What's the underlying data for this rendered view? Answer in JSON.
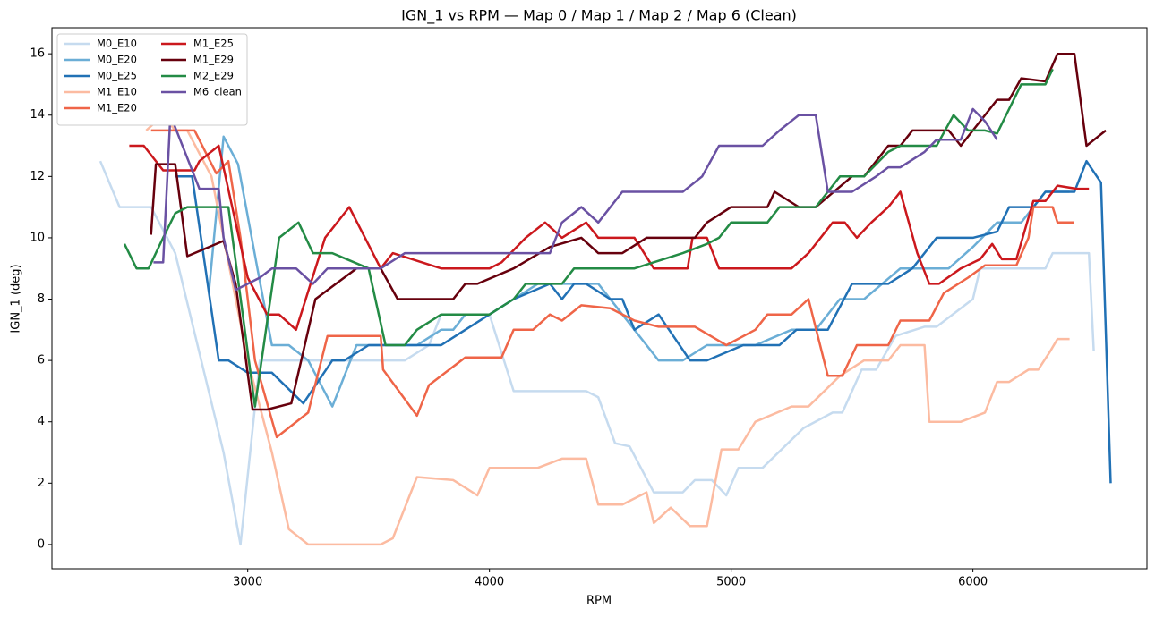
{
  "chart_data": {
    "type": "line",
    "title": "IGN_1 vs RPM — Map 0 / Map 1 / Map 2 / Map 6 (Clean)",
    "x_label": "RPM",
    "y_label": "IGN_1 (deg)",
    "xlim": [
      2190,
      6720
    ],
    "ylim": [
      -0.79,
      16.85
    ],
    "xticks": [
      3000,
      4000,
      5000,
      6000
    ],
    "yticks": [
      0,
      2,
      4,
      6,
      8,
      10,
      12,
      14,
      16
    ],
    "legend": "upper left",
    "series": [
      {
        "name": "M0_E10",
        "color": "#c6dbef",
        "x": [
          2390,
          2470,
          2600,
          2700,
          2900,
          2970,
          3050,
          3500,
          3650,
          3750,
          3800,
          4000,
          4100,
          4400,
          4450,
          4520,
          4580,
          4680,
          4800,
          4850,
          4920,
          4980,
          5030,
          5130,
          5300,
          5420,
          5460,
          5540,
          5600,
          5680,
          5800,
          5850,
          6000,
          6030,
          6300,
          6330,
          6480,
          6500
        ],
        "values": [
          12.5,
          11,
          11,
          9.5,
          3,
          0,
          6,
          6,
          6,
          6.5,
          7.5,
          7.5,
          5,
          5,
          4.8,
          3.3,
          3.2,
          1.7,
          1.7,
          2.1,
          2.1,
          1.6,
          2.5,
          2.5,
          3.8,
          4.3,
          4.3,
          5.7,
          5.7,
          6.8,
          7.1,
          7.1,
          8,
          9,
          9,
          9.5,
          9.5,
          6.3
        ]
      },
      {
        "name": "M0_E20",
        "color": "#6baed6",
        "x": [
          2840,
          2900,
          2960,
          3040,
          3100,
          3170,
          3250,
          3350,
          3450,
          3700,
          3800,
          3850,
          3900,
          4000,
          4100,
          4200,
          4450,
          4550,
          4700,
          4800,
          4900,
          5100,
          5250,
          5350,
          5450,
          5550,
          5700,
          5900,
          6000,
          6100,
          6200,
          6300,
          6400
        ],
        "values": [
          8.3,
          13.3,
          12.4,
          9,
          6.5,
          6.5,
          6,
          4.5,
          6.5,
          6.5,
          7,
          7,
          7.5,
          7.5,
          8,
          8.5,
          8.5,
          7.5,
          6,
          6,
          6.5,
          6.5,
          7,
          7,
          8,
          8,
          9,
          9,
          9.7,
          10.5,
          10.5,
          11.5,
          11.5
        ]
      },
      {
        "name": "M0_E25",
        "color": "#2171b5",
        "x": [
          2700,
          2770,
          2880,
          2920,
          3000,
          3100,
          3230,
          3350,
          3400,
          3500,
          3800,
          4000,
          4100,
          4250,
          4300,
          4350,
          4400,
          4500,
          4550,
          4600,
          4700,
          4830,
          4900,
          5050,
          5200,
          5270,
          5400,
          5500,
          5650,
          5750,
          5850,
          6000,
          6100,
          6150,
          6250,
          6300,
          6420,
          6470,
          6530,
          6570
        ],
        "values": [
          12,
          12,
          6,
          6,
          5.6,
          5.6,
          4.6,
          6,
          6,
          6.5,
          6.5,
          7.5,
          8,
          8.5,
          8,
          8.5,
          8.5,
          8,
          8,
          7,
          7.5,
          6,
          6,
          6.5,
          6.5,
          7,
          7,
          8.5,
          8.5,
          9,
          10,
          10,
          10.2,
          11,
          11,
          11.5,
          11.5,
          12.5,
          11.8,
          2
        ]
      },
      {
        "name": "M1_E10",
        "color": "#fcbba1",
        "x": [
          2580,
          2650,
          2700,
          2750,
          2850,
          3000,
          3100,
          3170,
          3250,
          3550,
          3600,
          3700,
          3850,
          3950,
          4000,
          4200,
          4300,
          4400,
          4450,
          4550,
          4650,
          4680,
          4750,
          4830,
          4900,
          4960,
          5030,
          5100,
          5250,
          5320,
          5450,
          5550,
          5650,
          5700,
          5800,
          5820,
          5950,
          6050,
          6100,
          6150,
          6230,
          6270,
          6320,
          6350,
          6400
        ],
        "values": [
          13.5,
          14,
          13.5,
          13.5,
          12,
          6,
          3,
          0.5,
          0,
          0,
          0.2,
          2.2,
          2.1,
          1.6,
          2.5,
          2.5,
          2.8,
          2.8,
          1.3,
          1.3,
          1.7,
          0.7,
          1.2,
          0.6,
          0.6,
          3.1,
          3.1,
          4,
          4.5,
          4.5,
          5.5,
          6,
          6,
          6.5,
          6.5,
          4,
          4,
          4.3,
          5.3,
          5.3,
          5.7,
          5.7,
          6.3,
          6.7,
          6.7
        ]
      },
      {
        "name": "M1_E20",
        "color": "#ef6548",
        "x": [
          2600,
          2780,
          2870,
          2920,
          2970,
          3030,
          3120,
          3250,
          3330,
          3550,
          3560,
          3700,
          3750,
          3900,
          4050,
          4100,
          4180,
          4250,
          4300,
          4380,
          4500,
          4600,
          4700,
          4850,
          4980,
          5100,
          5150,
          5250,
          5320,
          5400,
          5460,
          5520,
          5650,
          5700,
          5820,
          5880,
          5980,
          6050,
          6180,
          6230,
          6250,
          6330,
          6350,
          6420
        ],
        "values": [
          13.5,
          13.5,
          12.1,
          12.5,
          10,
          6,
          3.5,
          4.3,
          6.8,
          6.8,
          5.7,
          4.2,
          5.2,
          6.1,
          6.1,
          7,
          7,
          7.5,
          7.3,
          7.8,
          7.7,
          7.3,
          7.1,
          7.1,
          6.5,
          7,
          7.5,
          7.5,
          8,
          5.5,
          5.5,
          6.5,
          6.5,
          7.3,
          7.3,
          8.2,
          8.7,
          9.1,
          9.1,
          10,
          11,
          11,
          10.5,
          10.5
        ]
      },
      {
        "name": "M1_E25",
        "color": "#cb181d",
        "x": [
          2510,
          2570,
          2650,
          2780,
          2800,
          2880,
          3000,
          3080,
          3130,
          3200,
          3320,
          3420,
          3550,
          3600,
          3800,
          4000,
          4050,
          4150,
          4230,
          4300,
          4400,
          4450,
          4600,
          4680,
          4820,
          4840,
          4900,
          4950,
          5250,
          5320,
          5420,
          5470,
          5520,
          5580,
          5650,
          5700,
          5770,
          5820,
          5860,
          5950,
          6030,
          6080,
          6120,
          6180,
          6250,
          6300,
          6350,
          6430,
          6480
        ],
        "values": [
          13,
          13,
          12.2,
          12.2,
          12.5,
          13,
          8.7,
          7.5,
          7.5,
          7,
          10,
          11,
          9,
          9.5,
          9,
          9,
          9.2,
          10,
          10.5,
          10,
          10.5,
          10,
          10,
          9,
          9,
          10,
          10,
          9,
          9,
          9.5,
          10.5,
          10.5,
          10,
          10.5,
          11,
          11.5,
          9.5,
          8.5,
          8.5,
          9,
          9.3,
          9.8,
          9.3,
          9.3,
          11.2,
          11.2,
          11.7,
          11.6,
          11.6
        ]
      },
      {
        "name": "M1_E29",
        "color": "#67000d",
        "x": [
          2600,
          2620,
          2700,
          2750,
          2900,
          2950,
          3020,
          3080,
          3180,
          3280,
          3450,
          3550,
          3620,
          3850,
          3900,
          3950,
          4100,
          4250,
          4380,
          4450,
          4550,
          4650,
          4850,
          4900,
          5000,
          5150,
          5180,
          5280,
          5350,
          5500,
          5550,
          5650,
          5700,
          5750,
          5900,
          5950,
          6000,
          6100,
          6150,
          6200,
          6300,
          6350,
          6420,
          6470,
          6550
        ],
        "values": [
          10.1,
          12.4,
          12.4,
          9.4,
          9.9,
          8.5,
          4.4,
          4.4,
          4.6,
          8,
          9,
          9,
          8,
          8,
          8.5,
          8.5,
          9,
          9.7,
          10,
          9.5,
          9.5,
          10,
          10,
          10.5,
          11,
          11,
          11.5,
          11,
          11,
          12,
          12,
          13,
          13,
          13.5,
          13.5,
          13,
          13.5,
          14.5,
          14.5,
          15.2,
          15.1,
          16,
          16,
          13,
          13.5
        ]
      },
      {
        "name": "M2_E29",
        "color": "#238b45",
        "x": [
          2490,
          2540,
          2590,
          2650,
          2700,
          2750,
          2920,
          3030,
          3130,
          3210,
          3270,
          3350,
          3500,
          3570,
          3650,
          3700,
          3800,
          4000,
          4100,
          4150,
          4300,
          4350,
          4600,
          4800,
          4900,
          4950,
          5000,
          5150,
          5200,
          5350,
          5400,
          5450,
          5550,
          5650,
          5700,
          5850,
          5920,
          5980,
          6050,
          6100,
          6200,
          6300,
          6330
        ],
        "values": [
          9.8,
          9,
          9,
          10,
          10.8,
          11,
          11,
          4.5,
          10,
          10.5,
          9.5,
          9.5,
          9,
          6.5,
          6.5,
          7,
          7.5,
          7.5,
          8,
          8.5,
          8.5,
          9,
          9,
          9.5,
          9.8,
          10,
          10.5,
          10.5,
          11,
          11,
          11.5,
          12,
          12,
          12.8,
          13,
          13,
          14,
          13.5,
          13.5,
          13.4,
          15,
          15,
          15.5
        ]
      },
      {
        "name": "M6_clean",
        "color": "#6a51a3",
        "x": [
          2610,
          2650,
          2680,
          2800,
          2880,
          2900,
          2950,
          3050,
          3100,
          3200,
          3270,
          3330,
          3450,
          3550,
          3650,
          3900,
          4250,
          4300,
          4380,
          4450,
          4550,
          4800,
          4880,
          4950,
          5130,
          5200,
          5280,
          5350,
          5400,
          5500,
          5600,
          5650,
          5700,
          5800,
          5850,
          5950,
          6000,
          6050,
          6100
        ],
        "values": [
          9.2,
          9.2,
          14,
          11.6,
          11.6,
          10,
          8.3,
          8.7,
          9,
          9,
          8.5,
          9,
          9,
          9,
          9.5,
          9.5,
          9.5,
          10.5,
          11,
          10.5,
          11.5,
          11.5,
          12,
          13,
          13,
          13.5,
          14,
          14,
          11.5,
          11.5,
          12,
          12.3,
          12.3,
          12.8,
          13.2,
          13.2,
          14.2,
          13.8,
          13.2
        ]
      }
    ]
  }
}
